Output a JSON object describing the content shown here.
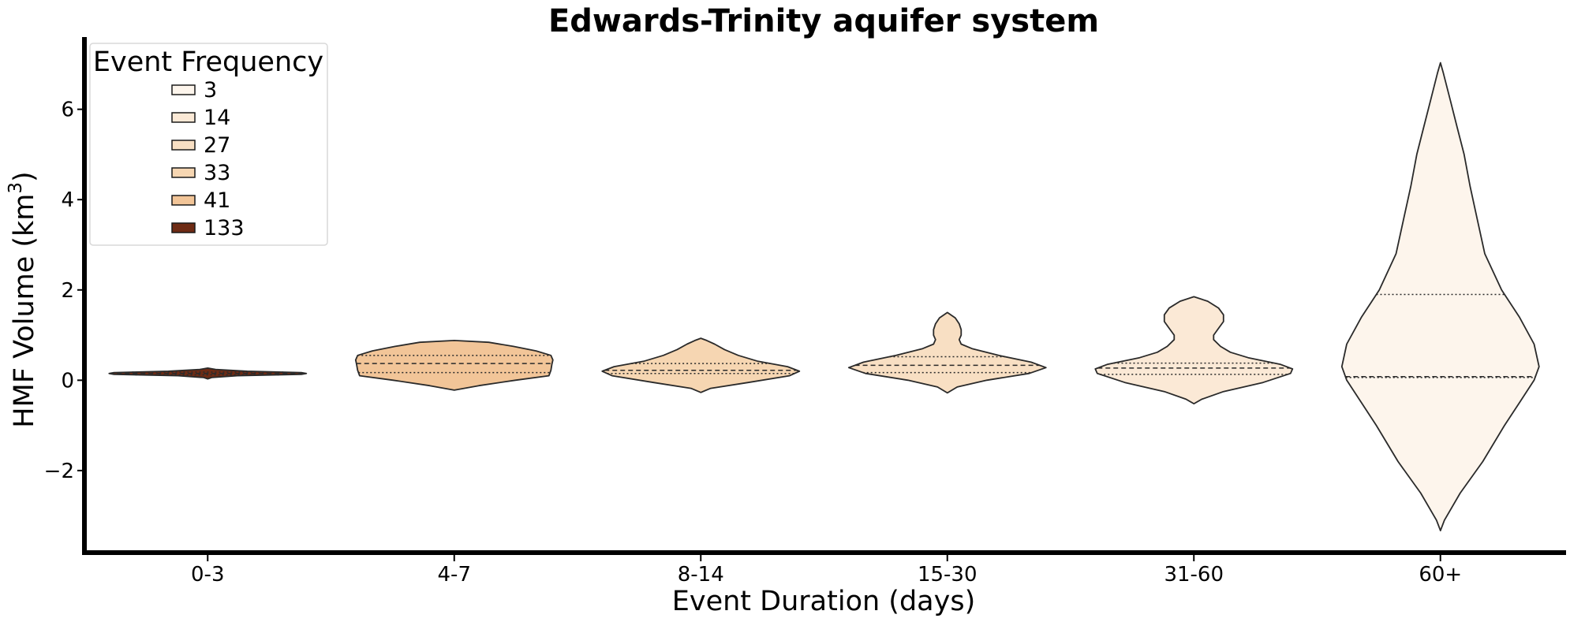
{
  "chart_data": {
    "type": "violin",
    "title": "Edwards-Trinity aquifer system",
    "xlabel": "Event Duration (days)",
    "ylabel": "HMF Volume (km",
    "ylabel_superscript": "3",
    "ylabel_suffix": ")",
    "categories": [
      "0-3",
      "4-7",
      "8-14",
      "15-30",
      "31-60",
      "60+"
    ],
    "ylim": [
      -3.8,
      7.6
    ],
    "yticks": [
      -2,
      0,
      2,
      4,
      6
    ],
    "ytick_labels": [
      "−2",
      "0",
      "2",
      "4",
      "6"
    ],
    "grid": false,
    "legend": {
      "title": "Event Frequency",
      "placement": "top-left",
      "entries": [
        {
          "label": "3",
          "color": "#fdf5ec"
        },
        {
          "label": "14",
          "color": "#fbe9d6"
        },
        {
          "label": "27",
          "color": "#f8dfc3"
        },
        {
          "label": "33",
          "color": "#f6d6b2"
        },
        {
          "label": "41",
          "color": "#f2c598"
        },
        {
          "label": "133",
          "color": "#6e2b14"
        }
      ]
    },
    "series": [
      {
        "category": "0-3",
        "count": 133,
        "color": "#6e2b14",
        "min": 0.03,
        "max": 0.27,
        "q1": 0.12,
        "median": 0.15,
        "q3": 0.18,
        "profile": [
          [
            0.03,
            0
          ],
          [
            0.06,
            0.04
          ],
          [
            0.1,
            0.3
          ],
          [
            0.13,
            0.95
          ],
          [
            0.15,
            1.0
          ],
          [
            0.17,
            0.95
          ],
          [
            0.2,
            0.4
          ],
          [
            0.24,
            0.08
          ],
          [
            0.27,
            0
          ]
        ]
      },
      {
        "category": "4-7",
        "count": 41,
        "color": "#f2c598",
        "min": -0.22,
        "max": 0.88,
        "q1": 0.17,
        "median": 0.37,
        "q3": 0.55,
        "profile": [
          [
            -0.22,
            0
          ],
          [
            -0.12,
            0.25
          ],
          [
            0.0,
            0.62
          ],
          [
            0.1,
            0.96
          ],
          [
            0.22,
            0.98
          ],
          [
            0.35,
            0.99
          ],
          [
            0.45,
            1.0
          ],
          [
            0.55,
            0.98
          ],
          [
            0.65,
            0.83
          ],
          [
            0.75,
            0.6
          ],
          [
            0.84,
            0.35
          ],
          [
            0.88,
            0
          ]
        ]
      },
      {
        "category": "8-14",
        "count": 33,
        "color": "#f6d6b2",
        "min": -0.27,
        "max": 0.93,
        "q1": 0.15,
        "median": 0.22,
        "q3": 0.37,
        "profile": [
          [
            -0.27,
            0
          ],
          [
            -0.18,
            0.1
          ],
          [
            -0.05,
            0.48
          ],
          [
            0.1,
            0.9
          ],
          [
            0.2,
            1.0
          ],
          [
            0.3,
            0.88
          ],
          [
            0.42,
            0.58
          ],
          [
            0.55,
            0.38
          ],
          [
            0.68,
            0.24
          ],
          [
            0.8,
            0.14
          ],
          [
            0.88,
            0.06
          ],
          [
            0.93,
            0
          ]
        ]
      },
      {
        "category": "15-30",
        "count": 27,
        "color": "#f8dfc3",
        "min": -0.28,
        "max": 1.5,
        "q1": 0.17,
        "median": 0.33,
        "q3": 0.52,
        "profile": [
          [
            -0.28,
            0
          ],
          [
            -0.15,
            0.1
          ],
          [
            0.0,
            0.4
          ],
          [
            0.15,
            0.83
          ],
          [
            0.28,
            1.0
          ],
          [
            0.4,
            0.85
          ],
          [
            0.55,
            0.52
          ],
          [
            0.7,
            0.25
          ],
          [
            0.8,
            0.14
          ],
          [
            0.9,
            0.12
          ],
          [
            1.0,
            0.14
          ],
          [
            1.12,
            0.14
          ],
          [
            1.25,
            0.12
          ],
          [
            1.38,
            0.08
          ],
          [
            1.5,
            0
          ]
        ]
      },
      {
        "category": "31-60",
        "count": 14,
        "color": "#fbe9d6",
        "min": -0.52,
        "max": 1.85,
        "q1": 0.13,
        "median": 0.27,
        "q3": 0.38,
        "profile": [
          [
            -0.52,
            0
          ],
          [
            -0.42,
            0.08
          ],
          [
            -0.25,
            0.3
          ],
          [
            -0.05,
            0.7
          ],
          [
            0.15,
            0.98
          ],
          [
            0.25,
            1.0
          ],
          [
            0.35,
            0.88
          ],
          [
            0.5,
            0.55
          ],
          [
            0.62,
            0.37
          ],
          [
            0.75,
            0.27
          ],
          [
            0.9,
            0.2
          ],
          [
            1.0,
            0.2
          ],
          [
            1.15,
            0.25
          ],
          [
            1.3,
            0.3
          ],
          [
            1.45,
            0.3
          ],
          [
            1.6,
            0.25
          ],
          [
            1.75,
            0.14
          ],
          [
            1.85,
            0
          ]
        ]
      },
      {
        "category": "60+",
        "count": 3,
        "color": "#fdf5ec",
        "min": -3.33,
        "max": 7.03,
        "q1": 0.06,
        "median": 0.08,
        "q3": 1.9,
        "profile": [
          [
            -3.33,
            0
          ],
          [
            -3.1,
            0.04
          ],
          [
            -2.5,
            0.2
          ],
          [
            -1.8,
            0.43
          ],
          [
            -1.0,
            0.65
          ],
          [
            -0.5,
            0.8
          ],
          [
            0.0,
            0.95
          ],
          [
            0.3,
            1.0
          ],
          [
            0.8,
            0.95
          ],
          [
            1.4,
            0.8
          ],
          [
            2.0,
            0.62
          ],
          [
            2.8,
            0.45
          ],
          [
            3.6,
            0.37
          ],
          [
            4.3,
            0.3
          ],
          [
            5.0,
            0.24
          ],
          [
            5.6,
            0.17
          ],
          [
            6.2,
            0.1
          ],
          [
            6.8,
            0.03
          ],
          [
            7.03,
            0
          ]
        ]
      }
    ]
  }
}
